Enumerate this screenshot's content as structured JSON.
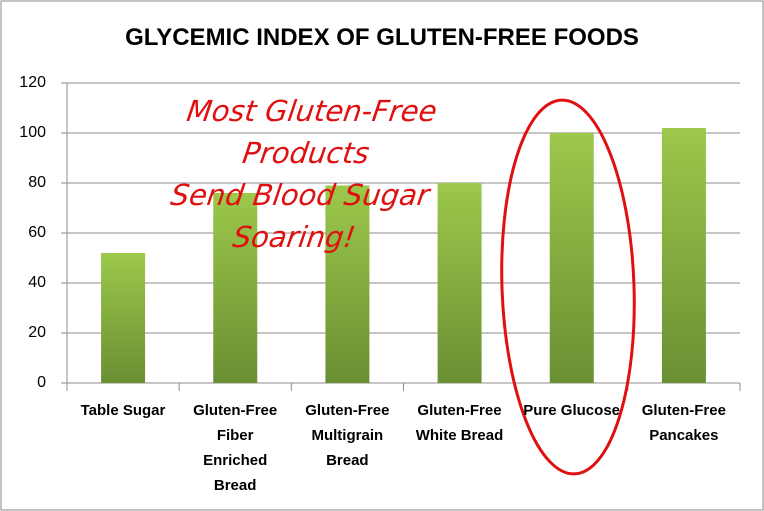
{
  "chart_data": {
    "type": "bar",
    "title": "GLYCEMIC INDEX OF GLUTEN-FREE FOODS",
    "annotation": "Most Gluten-Free Products\nSend Blood Sugar Soaring!",
    "categories": [
      "Table Sugar",
      "Gluten-Free\nFiber\nEnriched\nBread",
      "Gluten-Free\nMultigrain\nBread",
      "Gluten-Free\nWhite Bread",
      "Pure Glucose",
      "Gluten-Free\nPancakes"
    ],
    "values": [
      52,
      76,
      79,
      80,
      100,
      102
    ],
    "color": "#8fb646",
    "ylim": [
      0,
      120
    ],
    "yticks": [
      0,
      20,
      40,
      60,
      80,
      100,
      120
    ],
    "grid": true
  }
}
